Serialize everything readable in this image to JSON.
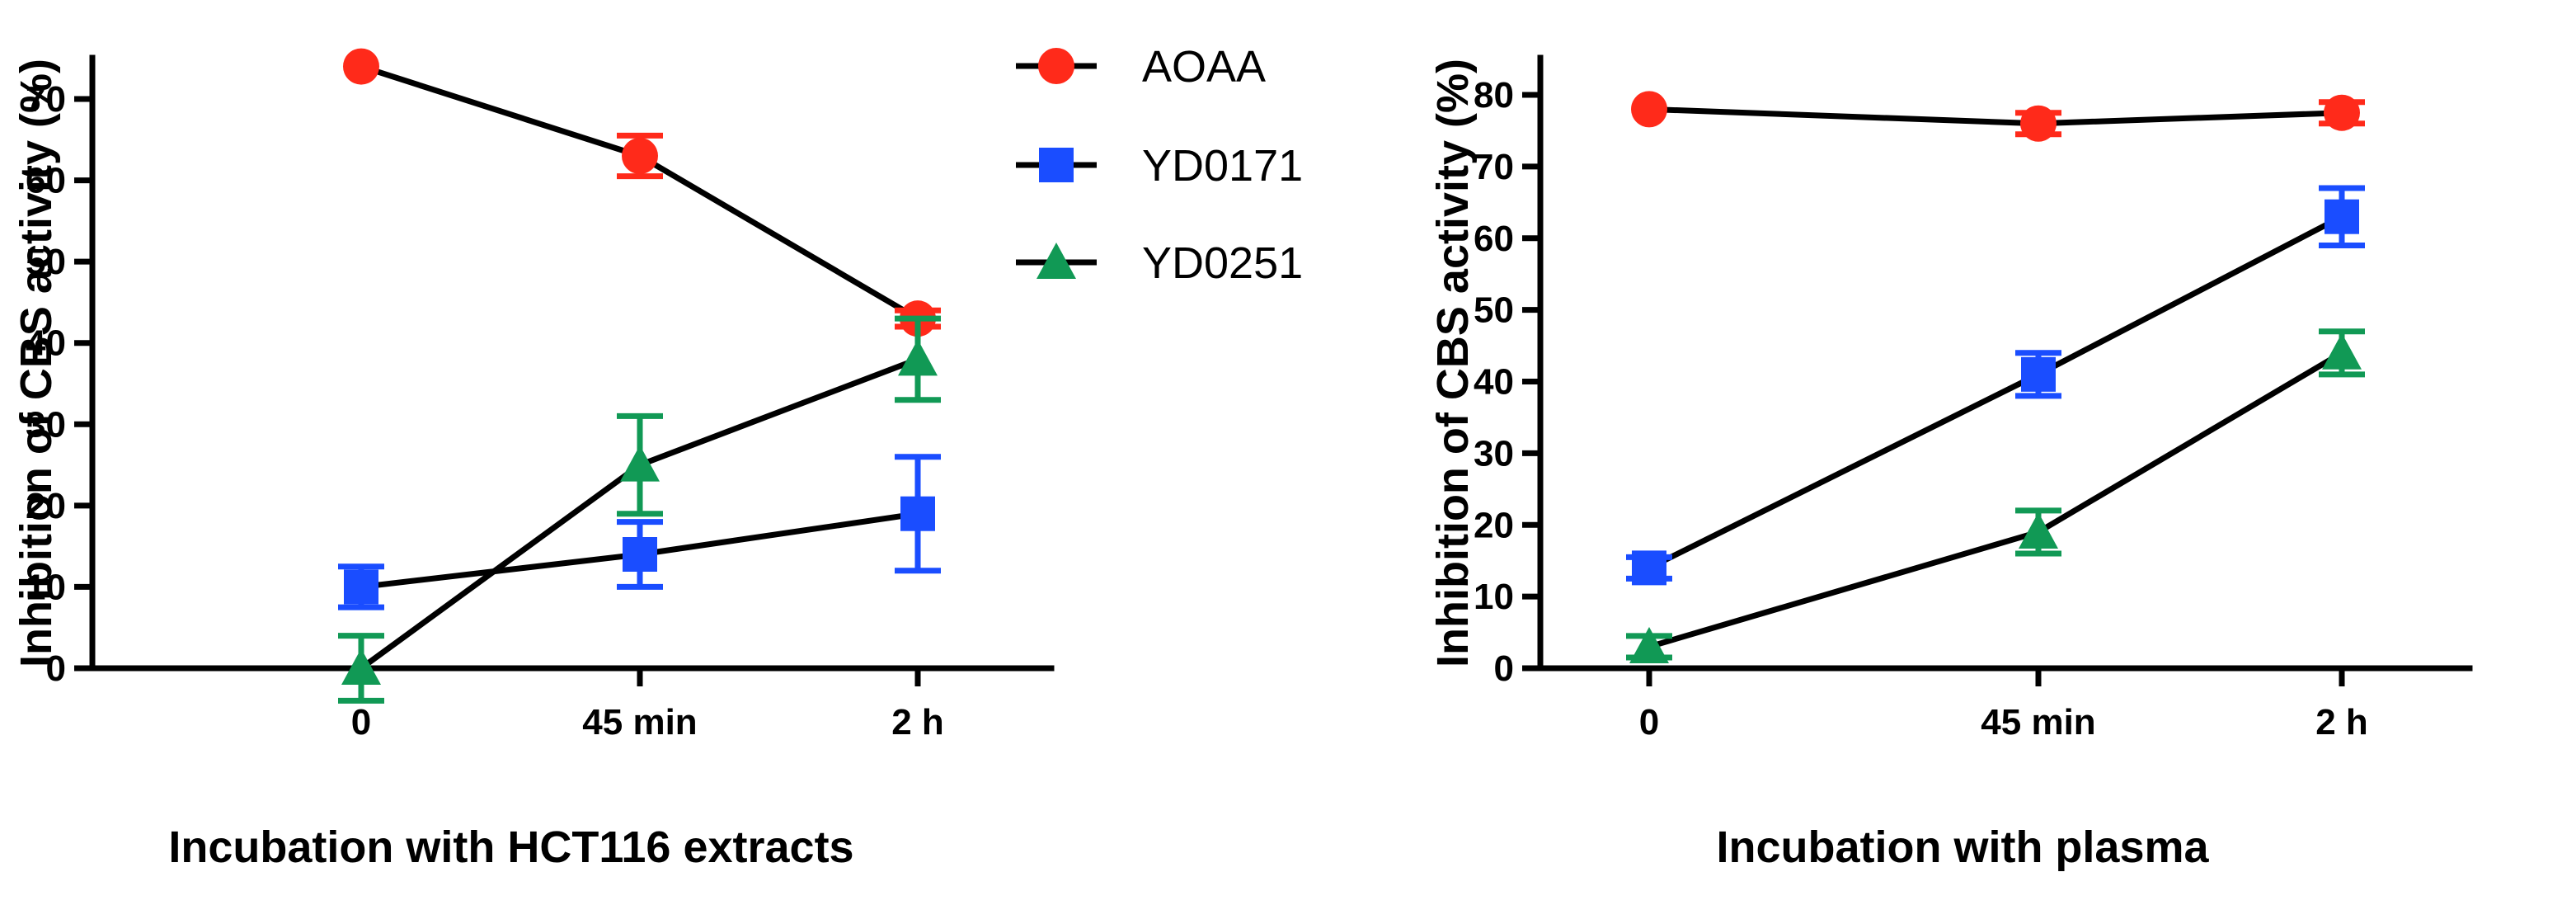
{
  "chart_data": [
    {
      "type": "line",
      "title": "",
      "xlabel": "Incubation with HCT116 extracts",
      "ylabel": "Inhibition of CBS activity (%)",
      "categories": [
        "0",
        "45 min",
        "2 h"
      ],
      "ylim": [
        0,
        72
      ],
      "yticks": [
        0,
        10,
        20,
        30,
        40,
        50,
        60,
        70
      ],
      "legend_position": "top-right",
      "series": [
        {
          "name": "AOAA",
          "color": "#ff2a1a",
          "marker": "circle",
          "values": [
            74,
            63,
            43
          ],
          "errors": [
            0,
            2.5,
            1
          ]
        },
        {
          "name": "YD0171",
          "color": "#1a4dff",
          "marker": "square",
          "values": [
            10,
            14,
            19
          ],
          "errors": [
            2.5,
            4,
            7
          ]
        },
        {
          "name": "YD0251",
          "color": "#119955",
          "marker": "triangle",
          "values": [
            0,
            25,
            38
          ],
          "errors": [
            4,
            6,
            5
          ]
        }
      ]
    },
    {
      "type": "line",
      "title": "",
      "xlabel": "Incubation with plasma",
      "ylabel": "Inhibition of CBS activity (%)",
      "categories": [
        "0",
        "45 min",
        "2 h"
      ],
      "ylim": [
        0,
        82
      ],
      "yticks": [
        0,
        10,
        20,
        30,
        40,
        50,
        60,
        70,
        80
      ],
      "series": [
        {
          "name": "AOAA",
          "color": "#ff2a1a",
          "marker": "circle",
          "values": [
            78,
            76,
            77.5
          ],
          "errors": [
            0,
            1.5,
            1.5
          ]
        },
        {
          "name": "YD0171",
          "color": "#1a4dff",
          "marker": "square",
          "values": [
            14,
            41,
            63
          ],
          "errors": [
            1.5,
            3,
            4
          ]
        },
        {
          "name": "YD0251",
          "color": "#119955",
          "marker": "triangle",
          "values": [
            3,
            19,
            44
          ],
          "errors": [
            1.5,
            3,
            3
          ]
        }
      ]
    }
  ]
}
